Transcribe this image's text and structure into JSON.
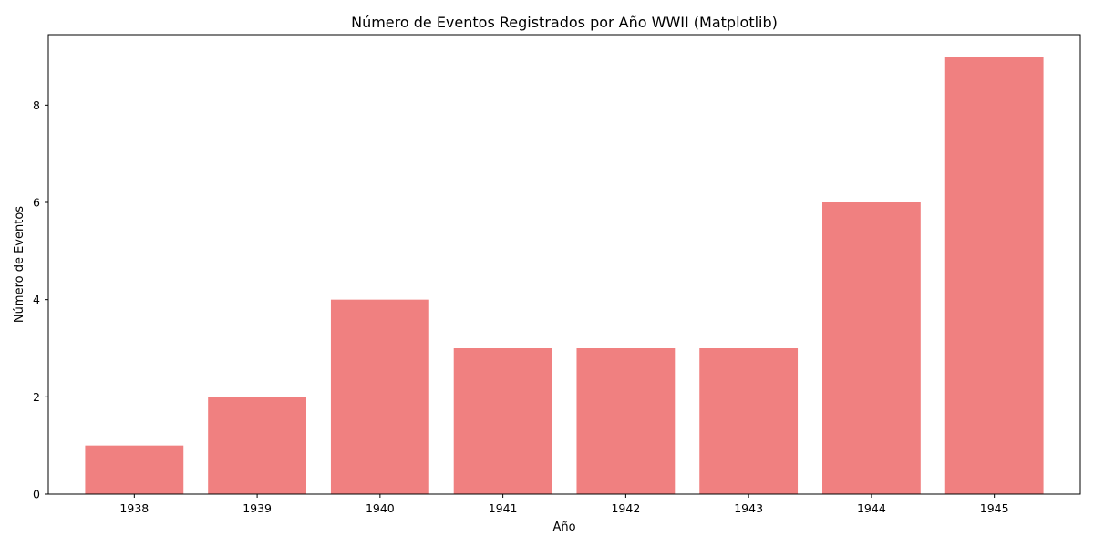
{
  "chart_data": {
    "type": "bar",
    "title": "Número de Eventos Registrados por Año WWII (Matplotlib)",
    "xlabel": "Año",
    "ylabel": "Número de Eventos",
    "categories": [
      "1938",
      "1939",
      "1940",
      "1941",
      "1942",
      "1943",
      "1944",
      "1945"
    ],
    "values": [
      1,
      2,
      4,
      3,
      3,
      3,
      6,
      9
    ],
    "ylim": [
      0,
      9.45
    ],
    "yticks": [
      0,
      2,
      4,
      6,
      8
    ],
    "grid": false,
    "legend": "none",
    "bar_color": "#f08080"
  }
}
